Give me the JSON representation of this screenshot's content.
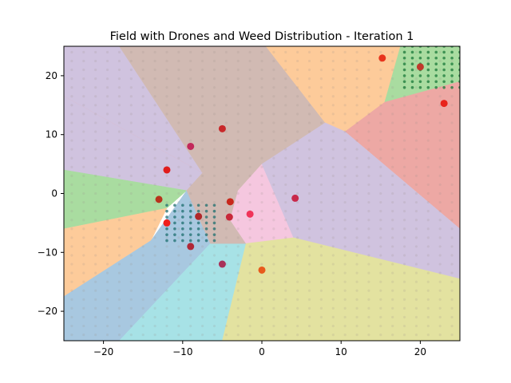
{
  "chart_data": {
    "type": "scatter",
    "title": "Field with Drones and Weed Distribution - Iteration 1",
    "xlabel": "",
    "ylabel": "",
    "xlim": [
      -25,
      25
    ],
    "ylim": [
      -25,
      25
    ],
    "xticks": [
      -20,
      -10,
      0,
      10,
      20
    ],
    "yticks": [
      -20,
      -10,
      0,
      10,
      20
    ],
    "xtick_labels": [
      "−20",
      "−10",
      "0",
      "10",
      "20"
    ],
    "ytick_labels": [
      "−20",
      "−10",
      "0",
      "10",
      "20"
    ],
    "grid": false,
    "regions": [
      {
        "color": "#d0c3df",
        "polygon": [
          [
            -25,
            25
          ],
          [
            -18,
            25
          ],
          [
            -7.5,
            3.5
          ],
          [
            -25,
            16.5
          ]
        ]
      },
      {
        "color": "#d1bab3",
        "polygon": [
          [
            -18,
            25
          ],
          [
            0.5,
            25
          ],
          [
            8,
            12
          ],
          [
            0,
            5
          ],
          [
            -5,
            5
          ],
          [
            -7.5,
            3.5
          ]
        ]
      },
      {
        "color": "#fdcb9a",
        "polygon": [
          [
            0.5,
            25
          ],
          [
            17.5,
            25
          ],
          [
            15.5,
            15.5
          ],
          [
            10.5,
            10.5
          ],
          [
            8,
            12
          ]
        ]
      },
      {
        "color": "#a9dca0",
        "polygon": [
          [
            17.5,
            25
          ],
          [
            25,
            25
          ],
          [
            25,
            19
          ],
          [
            15.5,
            15.5
          ]
        ]
      },
      {
        "color": "#eda8a4",
        "polygon": [
          [
            15.5,
            15.5
          ],
          [
            25,
            19
          ],
          [
            25,
            -6
          ],
          [
            10.5,
            10.5
          ]
        ]
      },
      {
        "color": "#eda8a4",
        "polygon": [
          [
            -25,
            16.5
          ],
          [
            -7.5,
            3.5
          ],
          [
            -9.5,
            0.5
          ],
          [
            -25,
            4
          ]
        ]
      },
      {
        "color": "#d0c3df",
        "polygon": [
          [
            -7.5,
            3.5
          ],
          [
            -9.5,
            0.5
          ],
          [
            -25,
            4
          ],
          [
            -25,
            -25
          ],
          [
            -25,
            16.5
          ]
        ]
      },
      {
        "color": "#a9dca0",
        "polygon": [
          [
            -25,
            4
          ],
          [
            -9.5,
            0.5
          ],
          [
            -12,
            -2.5
          ],
          [
            -25,
            -6
          ]
        ]
      },
      {
        "color": "#fdcb9a",
        "polygon": [
          [
            -25,
            -6
          ],
          [
            -12,
            -2.5
          ],
          [
            -14,
            -8
          ],
          [
            -25,
            -17.5
          ]
        ]
      },
      {
        "color": "#a8c8e0",
        "polygon": [
          [
            -25,
            -17.5
          ],
          [
            -14,
            -8
          ],
          [
            -9.5,
            0.5
          ],
          [
            -6.5,
            -8.5
          ],
          [
            -18,
            -25
          ],
          [
            -25,
            -25
          ]
        ]
      },
      {
        "color": "#a7e2e6",
        "polygon": [
          [
            -18,
            -25
          ],
          [
            -6.5,
            -8.5
          ],
          [
            -2,
            -8.5
          ],
          [
            -5,
            -25
          ]
        ]
      },
      {
        "color": "#d1bab3",
        "polygon": [
          [
            -7.5,
            3.5
          ],
          [
            -5,
            5
          ],
          [
            0,
            5
          ],
          [
            -3,
            0.5
          ],
          [
            -4,
            -4.5
          ],
          [
            -2,
            -8.5
          ],
          [
            -6.5,
            -8.5
          ],
          [
            -9.5,
            0.5
          ]
        ]
      },
      {
        "color": "#f5c7df",
        "polygon": [
          [
            -3,
            0.5
          ],
          [
            0,
            5
          ],
          [
            4,
            -7.5
          ],
          [
            -2,
            -8.5
          ],
          [
            -4,
            -4.5
          ]
        ]
      },
      {
        "color": "#d0c3df",
        "polygon": [
          [
            0,
            5
          ],
          [
            8,
            12
          ],
          [
            10.5,
            10.5
          ],
          [
            25,
            -6
          ],
          [
            25,
            -14.5
          ],
          [
            4,
            -7.5
          ]
        ]
      },
      {
        "color": "#e3e2a0",
        "polygon": [
          [
            -2,
            -8.5
          ],
          [
            4,
            -7.5
          ],
          [
            25,
            -14.5
          ],
          [
            25,
            -25
          ],
          [
            -5,
            -25
          ]
        ]
      }
    ],
    "weed_clusters": [
      {
        "name": "",
        "color": "#1a7a3a",
        "x_range": [
          18,
          25
        ],
        "y_range": [
          18,
          25
        ],
        "step": 1
      },
      {
        "name": "",
        "color": "#1e6f6f",
        "x_range": [
          -12,
          -6
        ],
        "y_range": [
          -8,
          -2
        ],
        "step": 1
      }
    ],
    "drones": {
      "name": "",
      "points": [
        {
          "x": 15.2,
          "y": 23.0,
          "color": "#e8341c"
        },
        {
          "x": 20.0,
          "y": 21.5,
          "color": "#c0392b"
        },
        {
          "x": 23.0,
          "y": 15.3,
          "color": "#e8241c"
        },
        {
          "x": -5.0,
          "y": 11.0,
          "color": "#c8282a"
        },
        {
          "x": -9.0,
          "y": 8.0,
          "color": "#c2285a"
        },
        {
          "x": -12.0,
          "y": 4.0,
          "color": "#e01c1c"
        },
        {
          "x": -13.0,
          "y": -1.0,
          "color": "#b8321c"
        },
        {
          "x": -4.0,
          "y": -1.4,
          "color": "#c8281c"
        },
        {
          "x": 4.2,
          "y": -0.8,
          "color": "#c8284a"
        },
        {
          "x": -1.5,
          "y": -3.5,
          "color": "#f0345a"
        },
        {
          "x": -8.0,
          "y": -3.9,
          "color": "#b0282a"
        },
        {
          "x": -4.1,
          "y": -4.0,
          "color": "#c8283a"
        },
        {
          "x": -12.0,
          "y": -5.0,
          "color": "#f0201c"
        },
        {
          "x": -9.0,
          "y": -9.0,
          "color": "#b02838"
        },
        {
          "x": -5.0,
          "y": -12.0,
          "color": "#a8325a"
        },
        {
          "x": 0.0,
          "y": -13.0,
          "color": "#e85a1c"
        }
      ]
    }
  }
}
